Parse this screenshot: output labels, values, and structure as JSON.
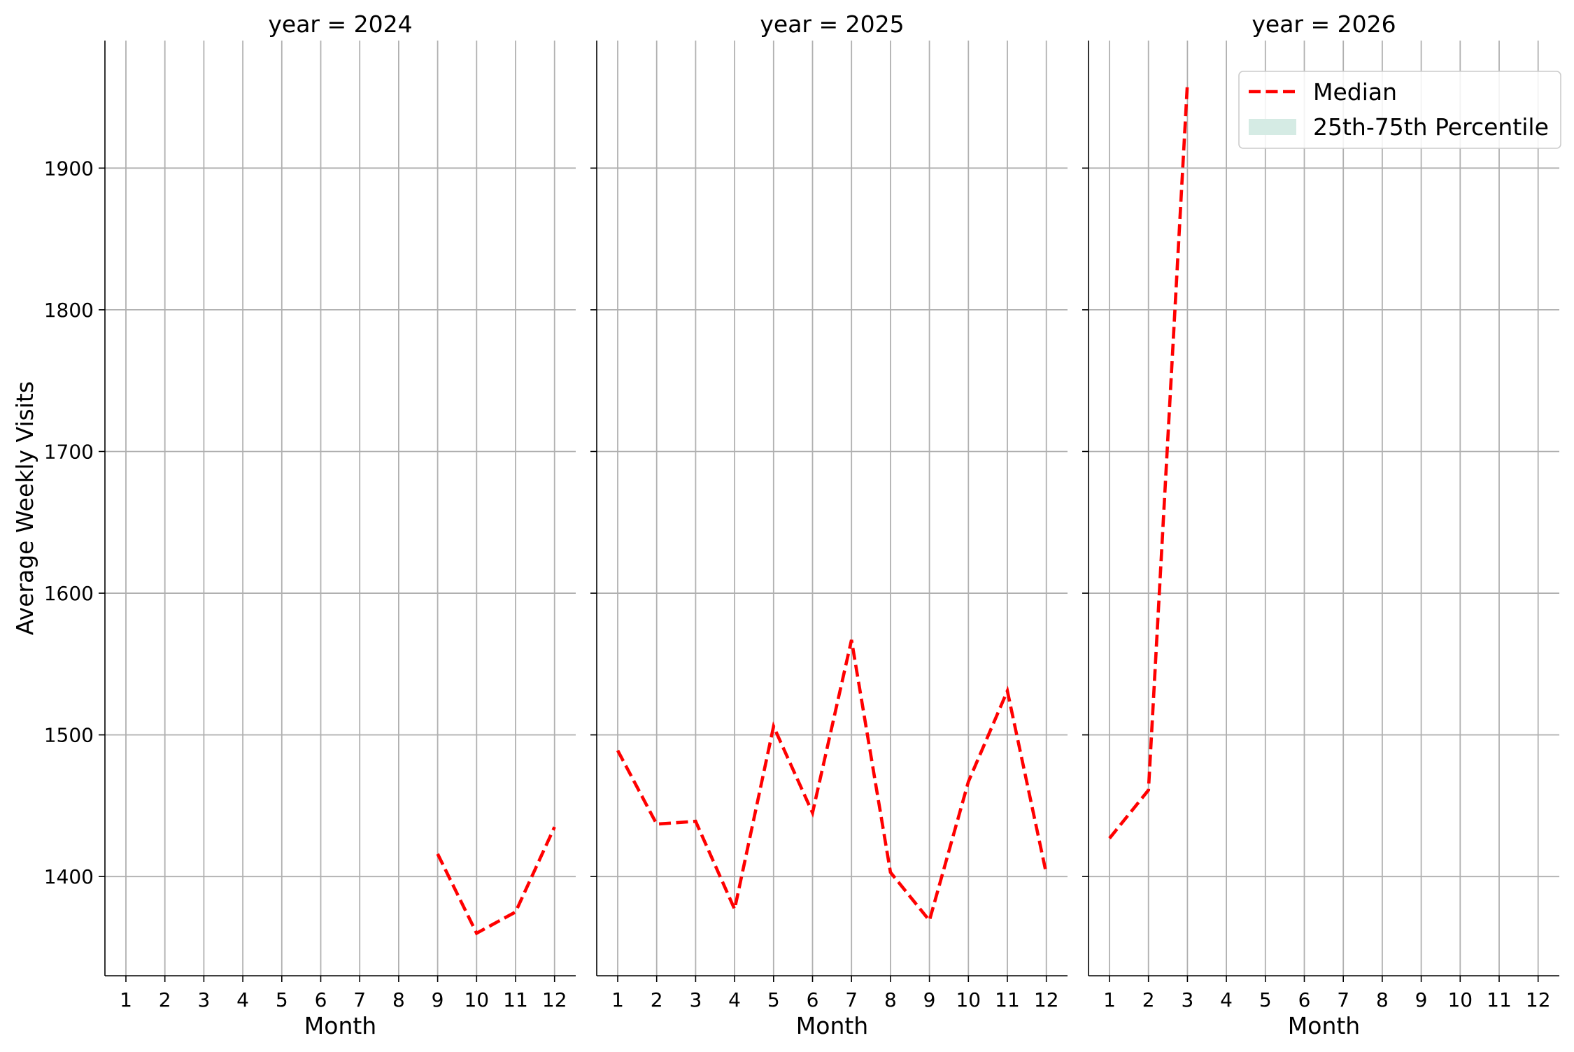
{
  "chart_data": {
    "type": "line",
    "ylabel": "Average Weekly Visits",
    "xlabel": "Month",
    "ylim": [
      1330,
      1990
    ],
    "yticks": [
      1400,
      1500,
      1600,
      1700,
      1800,
      1900
    ],
    "xticks": [
      1,
      2,
      3,
      4,
      5,
      6,
      7,
      8,
      9,
      10,
      11,
      12
    ],
    "grid": true,
    "line_color": "#ff0000",
    "band_color": "#d5ebe4",
    "legend": {
      "placement": "top-right",
      "entries": [
        {
          "label": "Median",
          "kind": "line"
        },
        {
          "label": "25th-75th Percentile",
          "kind": "band"
        }
      ]
    },
    "panels": [
      {
        "title": "year = 2024",
        "series": [
          {
            "name": "Median",
            "x": [
              9,
              10,
              11,
              12
            ],
            "y": [
              1416,
              1360,
              1375,
              1435
            ]
          }
        ]
      },
      {
        "title": "year = 2025",
        "series": [
          {
            "name": "Median",
            "x": [
              1,
              2,
              3,
              4,
              5,
              6,
              7,
              8,
              9,
              10,
              11,
              12
            ],
            "y": [
              1489,
              1437,
              1439,
              1377,
              1506,
              1445,
              1567,
              1403,
              1369,
              1467,
              1531,
              1402
            ]
          }
        ]
      },
      {
        "title": "year = 2026",
        "series": [
          {
            "name": "Median",
            "x": [
              1,
              2,
              3
            ],
            "y": [
              1427,
              1461,
              1960
            ]
          }
        ]
      }
    ]
  }
}
